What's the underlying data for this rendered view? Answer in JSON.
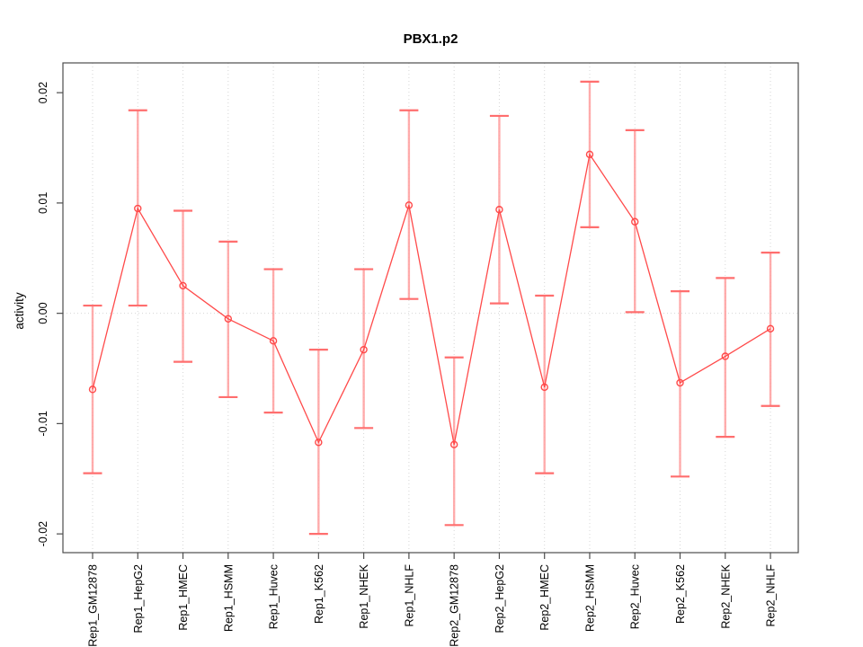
{
  "chart_data": {
    "type": "line",
    "subtype": "points-with-error-bars",
    "title": "PBX1.p2",
    "xlabel": "",
    "ylabel": "activity",
    "ylim": [
      -0.0217,
      0.0227
    ],
    "yticks": [
      -0.02,
      -0.01,
      0.0,
      0.01,
      0.02
    ],
    "ytick_labels": [
      "-0.02",
      "-0.01",
      "0.00",
      "0.01",
      "0.02"
    ],
    "grid": {
      "vertical": "dotted light-gray line at every category",
      "horizontal": "dotted light-gray line at y=0 only"
    },
    "legend": "none",
    "categories": [
      "Rep1_GM12878",
      "Rep1_HepG2",
      "Rep1_HMEC",
      "Rep1_HSMM",
      "Rep1_Huvec",
      "Rep1_K562",
      "Rep1_NHEK",
      "Rep1_NHLF",
      "Rep2_GM12878",
      "Rep2_HepG2",
      "Rep2_HMEC",
      "Rep2_HSMM",
      "Rep2_Huvec",
      "Rep2_K562",
      "Rep2_NHEK",
      "Rep2_NHLF"
    ],
    "series": [
      {
        "name": "activity",
        "values": [
          -0.0069,
          0.0095,
          0.0025,
          -0.0005,
          -0.0025,
          -0.0117,
          -0.0033,
          0.0098,
          -0.0119,
          0.0094,
          -0.0067,
          0.0144,
          0.0083,
          -0.0063,
          -0.0039,
          -0.0014
        ],
        "upper": [
          0.0007,
          0.0184,
          0.0093,
          0.0065,
          0.004,
          -0.0033,
          0.004,
          0.0184,
          -0.004,
          0.0179,
          0.0016,
          0.021,
          0.0166,
          0.002,
          0.0032,
          0.0055
        ],
        "lower": [
          -0.0145,
          0.0007,
          -0.0044,
          -0.0076,
          -0.009,
          -0.02,
          -0.0104,
          0.0013,
          -0.0192,
          0.0009,
          -0.0145,
          0.0078,
          0.0001,
          -0.0148,
          -0.0112,
          -0.0084
        ]
      }
    ],
    "colors": {
      "background": "#ffffff",
      "line": "#ff4a4a",
      "point_stroke": "#ff4a4a",
      "error_stem": "#ff9e9e",
      "error_cap": "#ff6e6e",
      "grid": "#d6d6d6",
      "axis": "#4d4d4d",
      "text": "#000000"
    }
  }
}
